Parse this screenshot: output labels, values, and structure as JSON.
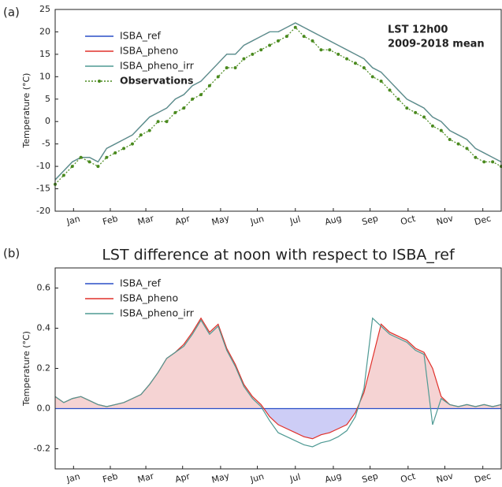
{
  "chart_data": [
    {
      "type": "line",
      "panel_label": "(a)",
      "y_label": "Temperature (°C)",
      "annotation": [
        "LST 12h00",
        "2009-2018 mean"
      ],
      "x": [
        1,
        8,
        15,
        22,
        29,
        36,
        43,
        50,
        57,
        64,
        71,
        78,
        85,
        92,
        99,
        106,
        113,
        120,
        127,
        134,
        141,
        148,
        155,
        162,
        169,
        176,
        183,
        190,
        197,
        204,
        211,
        218,
        225,
        232,
        239,
        246,
        253,
        260,
        267,
        274,
        281,
        288,
        295,
        302,
        309,
        316,
        323,
        330,
        337,
        344,
        351,
        358,
        365
      ],
      "xlim": [
        1,
        365
      ],
      "xticks": [
        {
          "value": 16,
          "label": "Jan"
        },
        {
          "value": 46,
          "label": "Feb"
        },
        {
          "value": 75,
          "label": "Mar"
        },
        {
          "value": 105,
          "label": "Apr"
        },
        {
          "value": 136,
          "label": "May"
        },
        {
          "value": 166,
          "label": "Jun"
        },
        {
          "value": 197,
          "label": "Jul"
        },
        {
          "value": 228,
          "label": "Aug"
        },
        {
          "value": 258,
          "label": "Sep"
        },
        {
          "value": 289,
          "label": "Oct"
        },
        {
          "value": 319,
          "label": "Nov"
        },
        {
          "value": 350,
          "label": "Dec"
        }
      ],
      "ylim": [
        -20,
        25
      ],
      "yticks": [
        -20,
        -15,
        -10,
        -5,
        0,
        5,
        10,
        15,
        20,
        25
      ],
      "series": [
        {
          "name": "ISBA_ref",
          "color": "#2a4fc7",
          "values": [
            -13,
            -11,
            -9,
            -8,
            -8,
            -9,
            -6,
            -5,
            -4,
            -3,
            -1,
            1,
            2,
            3,
            5,
            6,
            8,
            9,
            11,
            13,
            15,
            15,
            17,
            18,
            19,
            20,
            20,
            21,
            22,
            21,
            20,
            19,
            18,
            17,
            16,
            15,
            14,
            12,
            11,
            9,
            7,
            5,
            4,
            3,
            1,
            0,
            -2,
            -3,
            -4,
            -6,
            -7,
            -8,
            -9
          ]
        },
        {
          "name": "ISBA_pheno",
          "color": "#e0302a",
          "values": [
            -13,
            -11,
            -9,
            -8,
            -8,
            -9,
            -6,
            -5,
            -4,
            -3,
            -1,
            1,
            2,
            3,
            5,
            6,
            8,
            9,
            11,
            13,
            15,
            15,
            17,
            18,
            19,
            20,
            20,
            21,
            22,
            21,
            20,
            19,
            18,
            17,
            16,
            15,
            14,
            12,
            11,
            9,
            7,
            5,
            4,
            3,
            1,
            0,
            -2,
            -3,
            -4,
            -6,
            -7,
            -8,
            -9
          ]
        },
        {
          "name": "ISBA_pheno_irr",
          "color": "#4f9a94",
          "values": [
            -13,
            -11,
            -9,
            -8,
            -8,
            -9,
            -6,
            -5,
            -4,
            -3,
            -1,
            1,
            2,
            3,
            5,
            6,
            8,
            9,
            11,
            13,
            15,
            15,
            17,
            18,
            19,
            20,
            20,
            21,
            22,
            21,
            20,
            19,
            18,
            17,
            16,
            15,
            14,
            12,
            11,
            9,
            7,
            5,
            4,
            3,
            1,
            0,
            -2,
            -3,
            -4,
            -6,
            -7,
            -8,
            -9
          ]
        },
        {
          "name": "Observations",
          "color": "#4a8a1e",
          "dashed": true,
          "marker": true,
          "values": [
            -14,
            -12,
            -10,
            -8,
            -9,
            -10,
            -8,
            -7,
            -6,
            -5,
            -3,
            -2,
            0,
            0,
            2,
            3,
            5,
            6,
            8,
            10,
            12,
            12,
            14,
            15,
            16,
            17,
            18,
            19,
            21,
            19,
            18,
            16,
            16,
            15,
            14,
            13,
            12,
            10,
            9,
            7,
            5,
            3,
            2,
            1,
            -1,
            -2,
            -4,
            -5,
            -6,
            -8,
            -9,
            -9,
            -10
          ]
        }
      ]
    },
    {
      "type": "line",
      "panel_label": "(b)",
      "title": "LST difference at noon with respect to ISBA_ref",
      "y_label": "Temperature (°C)",
      "fill_between": true,
      "x": [
        1,
        8,
        15,
        22,
        29,
        36,
        43,
        50,
        57,
        64,
        71,
        78,
        85,
        92,
        99,
        106,
        113,
        120,
        127,
        134,
        141,
        148,
        155,
        162,
        169,
        176,
        183,
        190,
        197,
        204,
        211,
        218,
        225,
        232,
        239,
        246,
        253,
        260,
        267,
        274,
        281,
        288,
        295,
        302,
        309,
        316,
        323,
        330,
        337,
        344,
        351,
        358,
        365
      ],
      "xlim": [
        1,
        365
      ],
      "xticks": [
        {
          "value": 16,
          "label": "Jan"
        },
        {
          "value": 46,
          "label": "Feb"
        },
        {
          "value": 75,
          "label": "Mar"
        },
        {
          "value": 105,
          "label": "Apr"
        },
        {
          "value": 136,
          "label": "May"
        },
        {
          "value": 166,
          "label": "Jun"
        },
        {
          "value": 197,
          "label": "Jul"
        },
        {
          "value": 228,
          "label": "Aug"
        },
        {
          "value": 258,
          "label": "Sep"
        },
        {
          "value": 289,
          "label": "Oct"
        },
        {
          "value": 319,
          "label": "Nov"
        },
        {
          "value": 350,
          "label": "Dec"
        }
      ],
      "ylim": [
        -0.3,
        0.7
      ],
      "yticks": [
        -0.2,
        {
          "value": 0,
          "label": "0.0"
        },
        0.2,
        0.4,
        0.6
      ],
      "series": [
        {
          "name": "ISBA_ref",
          "color": "#2a4fc7",
          "values": [
            0,
            0,
            0,
            0,
            0,
            0,
            0,
            0,
            0,
            0,
            0,
            0,
            0,
            0,
            0,
            0,
            0,
            0,
            0,
            0,
            0,
            0,
            0,
            0,
            0,
            0,
            0,
            0,
            0,
            0,
            0,
            0,
            0,
            0,
            0,
            0,
            0,
            0,
            0,
            0,
            0,
            0,
            0,
            0,
            0,
            0,
            0,
            0,
            0,
            0,
            0,
            0,
            0
          ]
        },
        {
          "name": "ISBA_pheno",
          "color": "#e0302a",
          "values": [
            0.06,
            0.03,
            0.05,
            0.06,
            0.04,
            0.02,
            0.01,
            0.02,
            0.03,
            0.05,
            0.07,
            0.12,
            0.18,
            0.25,
            0.28,
            0.32,
            0.38,
            0.45,
            0.38,
            0.42,
            0.3,
            0.22,
            0.12,
            0.06,
            0.02,
            -0.04,
            -0.08,
            -0.1,
            -0.12,
            -0.14,
            -0.15,
            -0.13,
            -0.12,
            -0.1,
            -0.08,
            -0.02,
            0.08,
            0.25,
            0.42,
            0.38,
            0.36,
            0.34,
            0.3,
            0.28,
            0.2,
            0.06,
            0.02,
            0.01,
            0.02,
            0.01,
            0.02,
            0.01,
            0.02
          ]
        },
        {
          "name": "ISBA_pheno_irr",
          "color": "#4f9a94",
          "values": [
            0.06,
            0.03,
            0.05,
            0.06,
            0.04,
            0.02,
            0.01,
            0.02,
            0.03,
            0.05,
            0.07,
            0.12,
            0.18,
            0.25,
            0.28,
            0.31,
            0.37,
            0.44,
            0.37,
            0.41,
            0.29,
            0.21,
            0.11,
            0.05,
            0.01,
            -0.06,
            -0.12,
            -0.14,
            -0.16,
            -0.18,
            -0.19,
            -0.17,
            -0.16,
            -0.14,
            -0.11,
            -0.04,
            0.1,
            0.45,
            0.41,
            0.37,
            0.35,
            0.33,
            0.29,
            0.27,
            -0.08,
            0.05,
            0.02,
            0.01,
            0.02,
            0.01,
            0.02,
            0.01,
            0.02
          ]
        }
      ]
    }
  ]
}
